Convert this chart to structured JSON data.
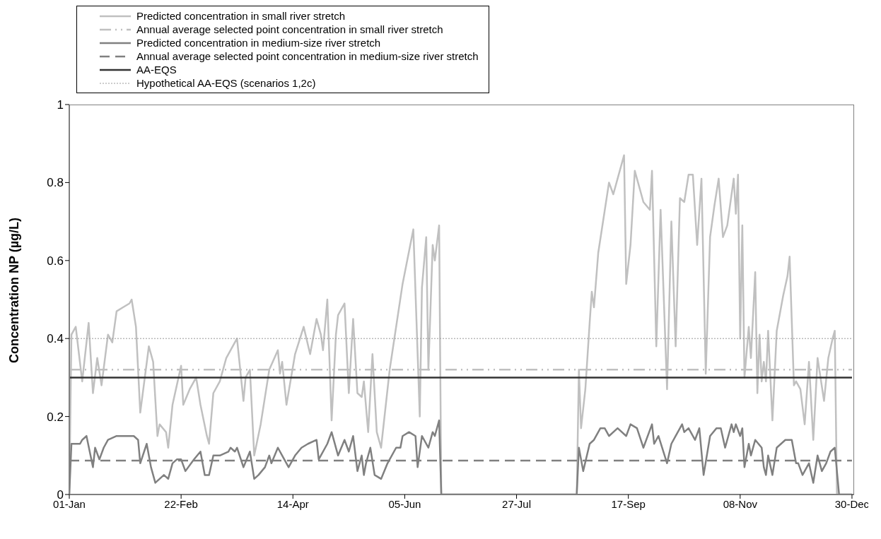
{
  "chart_data": {
    "type": "line",
    "ylabel": "Concentration NP (µg/L)",
    "ylim": [
      0,
      1
    ],
    "yticks": [
      0,
      0.2,
      0.4,
      0.6,
      0.8,
      1
    ],
    "xlim": [
      "--01-01",
      "--12-31"
    ],
    "xticks": [
      {
        "value": "--01-01",
        "label": "01-Jan"
      },
      {
        "value": "--02-22",
        "label": "22-Feb"
      },
      {
        "value": "--04-14",
        "label": "14-Apr"
      },
      {
        "value": "--06-05",
        "label": "05-Jun"
      },
      {
        "value": "--07-27",
        "label": "27-Jul"
      },
      {
        "value": "--09-17",
        "label": "17-Sep"
      },
      {
        "value": "--11-08",
        "label": "08-Nov"
      },
      {
        "value": "--12-30",
        "label": "30-Dec"
      }
    ],
    "grid": false,
    "legend": "top left",
    "marker": "none",
    "series": [
      {
        "name": "Predicted concentration in small river stretch",
        "color": "#c0c0c0",
        "line_style": "solid",
        "x": [
          "--01-01",
          "--01-02",
          "--01-04",
          "--01-07",
          "--01-10",
          "--01-12",
          "--01-14",
          "--01-16",
          "--01-19",
          "--01-21",
          "--01-23",
          "--01-26",
          "--01-29",
          "--01-30",
          "--02-01",
          "--02-03",
          "--02-07",
          "--02-09",
          "--02-11",
          "--02-12",
          "--02-15",
          "--02-16",
          "--02-18",
          "--02-22",
          "--02-23",
          "--02-26",
          "--02-29",
          "--03-02",
          "--03-05",
          "--03-06",
          "--03-08",
          "--03-11",
          "--03-14",
          "--03-19",
          "--03-22",
          "--03-23",
          "--03-25",
          "--03-27",
          "--03-30",
          "--04-03",
          "--04-07",
          "--04-08",
          "--04-09",
          "--04-11",
          "--04-15",
          "--04-19",
          "--04-22",
          "--04-25",
          "--04-27",
          "--04-28",
          "--04-30",
          "--05-02",
          "--05-04",
          "--05-05",
          "--05-08",
          "--05-10",
          "--05-12",
          "--05-14",
          "--05-16",
          "--05-17",
          "--05-19",
          "--05-21",
          "--05-23",
          "--05-25",
          "--05-29",
          "--06-04",
          "--06-09",
          "--06-12",
          "--06-13",
          "--06-15",
          "--06-16",
          "--06-18",
          "--06-19",
          "--06-21",
          "--06-22",
          "--08-24",
          "--08-25",
          "--08-26",
          "--08-28",
          "--08-30",
          "--08-31",
          "--09-01",
          "--09-03",
          "--09-08",
          "--09-10",
          "--09-12",
          "--09-15",
          "--09-16",
          "--09-18",
          "--09-20",
          "--09-22",
          "--09-24",
          "--09-27",
          "--09-28",
          "--09-30",
          "--10-02",
          "--10-05",
          "--10-07",
          "--10-09",
          "--10-11",
          "--10-13",
          "--10-15",
          "--10-17",
          "--10-19",
          "--10-21",
          "--10-23",
          "--10-25",
          "--10-27",
          "--10-29",
          "--10-31",
          "--11-02",
          "--11-05",
          "--11-06",
          "--11-07",
          "--11-08",
          "--11-09",
          "--11-10",
          "--11-12",
          "--11-13",
          "--11-15",
          "--11-16",
          "--11-17",
          "--11-18",
          "--11-19",
          "--11-20",
          "--11-21",
          "--11-23",
          "--11-25",
          "--11-28",
          "--11-30",
          "--12-01",
          "--12-03",
          "--12-04",
          "--12-06",
          "--12-08",
          "--12-10",
          "--12-12",
          "--12-14",
          "--12-17",
          "--12-19",
          "--12-21",
          "--12-22",
          "--12-23",
          "--12-30"
        ],
        "values": [
          0,
          0.41,
          0.43,
          0.29,
          0.44,
          0.26,
          0.35,
          0.28,
          0.41,
          0.39,
          0.47,
          0.48,
          0.49,
          0.5,
          0.43,
          0.21,
          0.38,
          0.34,
          0.15,
          0.18,
          0.16,
          0.12,
          0.23,
          0.33,
          0.23,
          0.27,
          0.3,
          0.23,
          0.15,
          0.13,
          0.26,
          0.29,
          0.35,
          0.4,
          0.24,
          0.3,
          0.32,
          0.1,
          0.18,
          0.32,
          0.37,
          0.31,
          0.34,
          0.23,
          0.36,
          0.43,
          0.36,
          0.45,
          0.41,
          0.37,
          0.5,
          0.19,
          0.41,
          0.46,
          0.49,
          0.26,
          0.45,
          0.26,
          0.25,
          0.29,
          0.16,
          0.36,
          0.16,
          0.12,
          0.32,
          0.54,
          0.68,
          0.2,
          0.53,
          0.66,
          0.32,
          0.64,
          0.6,
          0.69,
          0,
          0,
          0.32,
          0.17,
          0.27,
          0.44,
          0.52,
          0.48,
          0.62,
          0.8,
          0.77,
          0.81,
          0.87,
          0.54,
          0.64,
          0.83,
          0.79,
          0.75,
          0.73,
          0.83,
          0.38,
          0.73,
          0.27,
          0.7,
          0.38,
          0.76,
          0.75,
          0.82,
          0.82,
          0.64,
          0.81,
          0.31,
          0.66,
          0.74,
          0.81,
          0.66,
          0.69,
          0.81,
          0.72,
          0.82,
          0.4,
          0.69,
          0.3,
          0.43,
          0.35,
          0.57,
          0.26,
          0.41,
          0.29,
          0.34,
          0.29,
          0.42,
          0.19,
          0.42,
          0.51,
          0.56,
          0.61,
          0.28,
          0.29,
          0.27,
          0.18,
          0.34,
          0.14,
          0.35,
          0.24,
          0.35,
          0.4,
          0.42,
          0,
          0
        ]
      },
      {
        "name": "Annual average selected point concentration in small river stretch",
        "color": "#c0c0c0",
        "line_style": "dashdot",
        "x": [
          "--01-01",
          "--12-30"
        ],
        "values": [
          0.32,
          0.32
        ]
      },
      {
        "name": "Predicted concentration in medium-size river stretch",
        "color": "#808080",
        "line_style": "solid",
        "x": [
          "--01-01",
          "--01-02",
          "--01-06",
          "--01-07",
          "--01-09",
          "--01-12",
          "--01-13",
          "--01-15",
          "--01-17",
          "--01-19",
          "--01-23",
          "--01-26",
          "--01-31",
          "--02-02",
          "--02-03",
          "--02-06",
          "--02-08",
          "--02-10",
          "--02-14",
          "--02-16",
          "--02-18",
          "--02-20",
          "--02-22",
          "--02-24",
          "--02-28",
          "--03-02",
          "--03-04",
          "--03-06",
          "--03-08",
          "--03-11",
          "--03-15",
          "--03-16",
          "--03-18",
          "--03-19",
          "--03-22",
          "--03-25",
          "--03-27",
          "--03-29",
          "--04-01",
          "--04-03",
          "--04-04",
          "--04-07",
          "--04-09",
          "--04-12",
          "--04-15",
          "--04-18",
          "--04-21",
          "--04-25",
          "--04-26",
          "--04-30",
          "--05-02",
          "--05-05",
          "--05-08",
          "--05-10",
          "--05-12",
          "--05-14",
          "--05-16",
          "--05-17",
          "--05-18",
          "--05-20",
          "--05-22",
          "--05-25",
          "--05-28",
          "--06-01",
          "--06-03",
          "--06-04",
          "--06-07",
          "--06-10",
          "--06-11",
          "--06-13",
          "--06-16",
          "--06-18",
          "--06-19",
          "--06-21",
          "--06-22",
          "--08-24",
          "--08-25",
          "--08-27",
          "--08-30",
          "--09-01",
          "--09-04",
          "--09-06",
          "--09-08",
          "--09-12",
          "--09-16",
          "--09-18",
          "--09-21",
          "--09-24",
          "--09-28",
          "--09-29",
          "--10-01",
          "--10-05",
          "--10-07",
          "--10-09",
          "--10-12",
          "--10-13",
          "--10-15",
          "--10-18",
          "--10-20",
          "--10-22",
          "--10-25",
          "--10-28",
          "--10-30",
          "--11-01",
          "--11-04",
          "--11-05",
          "--11-06",
          "--11-08",
          "--11-09",
          "--11-10",
          "--11-12",
          "--11-13",
          "--11-15",
          "--11-18",
          "--11-19",
          "--11-20",
          "--11-21",
          "--11-23",
          "--11-25",
          "--11-27",
          "--11-29",
          "--12-02",
          "--12-04",
          "--12-05",
          "--12-07",
          "--12-10",
          "--12-12",
          "--12-14",
          "--12-16",
          "--12-18",
          "--12-20",
          "--12-22",
          "--12-24",
          "--12-30"
        ],
        "values": [
          0,
          0.13,
          0.13,
          0.14,
          0.15,
          0.07,
          0.12,
          0.09,
          0.12,
          0.14,
          0.15,
          0.15,
          0.15,
          0.14,
          0.08,
          0.13,
          0.07,
          0.03,
          0.05,
          0.04,
          0.08,
          0.09,
          0.09,
          0.06,
          0.09,
          0.11,
          0.05,
          0.05,
          0.1,
          0.1,
          0.11,
          0.12,
          0.11,
          0.12,
          0.07,
          0.11,
          0.04,
          0.05,
          0.07,
          0.1,
          0.08,
          0.12,
          0.1,
          0.07,
          0.1,
          0.12,
          0.13,
          0.14,
          0.09,
          0.13,
          0.16,
          0.1,
          0.14,
          0.11,
          0.15,
          0.06,
          0.1,
          0.05,
          0.08,
          0.12,
          0.05,
          0.04,
          0.08,
          0.12,
          0.12,
          0.15,
          0.16,
          0.15,
          0.07,
          0.15,
          0.12,
          0.16,
          0.15,
          0.19,
          0,
          0,
          0.12,
          0.06,
          0.13,
          0.14,
          0.17,
          0.17,
          0.15,
          0.17,
          0.15,
          0.18,
          0.17,
          0.12,
          0.18,
          0.13,
          0.15,
          0.08,
          0.13,
          0.15,
          0.18,
          0.16,
          0.17,
          0.14,
          0.17,
          0.05,
          0.15,
          0.17,
          0.17,
          0.12,
          0.18,
          0.16,
          0.18,
          0.15,
          0.17,
          0.07,
          0.13,
          0.1,
          0.14,
          0.12,
          0.07,
          0.05,
          0.1,
          0.05,
          0.12,
          0.13,
          0.14,
          0.14,
          0.08,
          0.08,
          0.05,
          0.08,
          0.03,
          0.1,
          0.06,
          0.08,
          0.11,
          0.12,
          0,
          0
        ]
      },
      {
        "name": "Annual average selected point concentration in medium-size river stretch",
        "color": "#808080",
        "line_style": "dashed",
        "x": [
          "--01-01",
          "--12-30"
        ],
        "values": [
          0.087,
          0.087
        ]
      },
      {
        "name": "AA-EQS",
        "color": "#333333",
        "line_style": "solid",
        "x": [
          "--01-01",
          "--12-30"
        ],
        "values": [
          0.3,
          0.3
        ]
      },
      {
        "name": "Hypothetical AA-EQS (scenarios 1,2c)",
        "color": "#999999",
        "line_style": "dotted",
        "x": [
          "--01-01",
          "--12-30"
        ],
        "values": [
          0.4,
          0.4
        ]
      }
    ]
  }
}
